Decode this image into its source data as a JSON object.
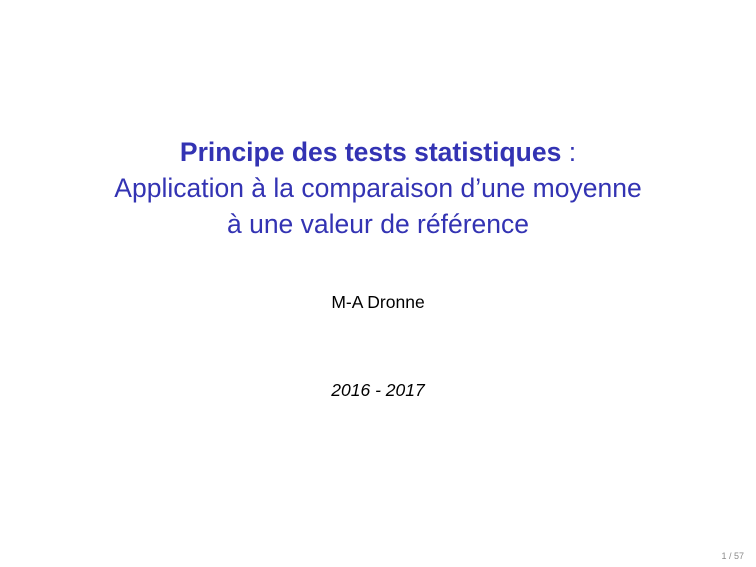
{
  "slide": {
    "title_bold": "Principe des tests statistiques",
    "title_colon": " :",
    "subtitle_line1": "Application à la comparaison d’une moyenne",
    "subtitle_line2": "à une valeur de référence",
    "author": "M-A Dronne",
    "date": "2016 - 2017",
    "page_number": "1 / 57"
  },
  "colors": {
    "title": "#3333b3",
    "page_number": "#8a8a8a"
  }
}
